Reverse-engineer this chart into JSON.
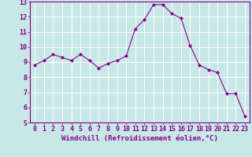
{
  "x": [
    0,
    1,
    2,
    3,
    4,
    5,
    6,
    7,
    8,
    9,
    10,
    11,
    12,
    13,
    14,
    15,
    16,
    17,
    18,
    19,
    20,
    21,
    22,
    23
  ],
  "y": [
    8.8,
    9.1,
    9.5,
    9.3,
    9.1,
    9.5,
    9.1,
    8.6,
    8.9,
    9.1,
    9.4,
    11.2,
    11.8,
    12.8,
    12.8,
    12.2,
    11.9,
    10.1,
    8.8,
    8.5,
    8.3,
    6.9,
    6.9,
    5.4
  ],
  "line_color": "#880088",
  "marker": "D",
  "marker_size": 2.0,
  "background_color": "#c8e8e8",
  "grid_color": "#ffffff",
  "xlabel": "Windchill (Refroidissement éolien,°C)",
  "ylabel": "",
  "title": "",
  "xlim": [
    -0.5,
    23.5
  ],
  "ylim": [
    5,
    13
  ],
  "yticks": [
    5,
    6,
    7,
    8,
    9,
    10,
    11,
    12,
    13
  ],
  "xticks": [
    0,
    1,
    2,
    3,
    4,
    5,
    6,
    7,
    8,
    9,
    10,
    11,
    12,
    13,
    14,
    15,
    16,
    17,
    18,
    19,
    20,
    21,
    22,
    23
  ],
  "xlabel_color": "#880088",
  "tick_color": "#880088",
  "spine_color": "#880088",
  "label_fontsize": 6.5,
  "tick_fontsize": 6.0
}
